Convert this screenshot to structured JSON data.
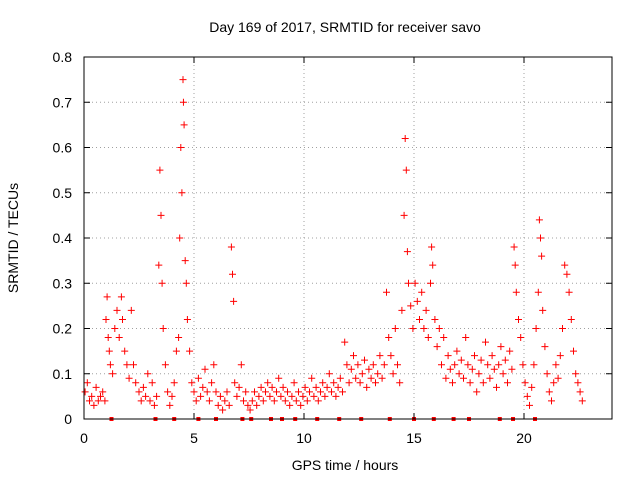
{
  "chart_data": {
    "type": "scatter",
    "title": "Day 169 of 2017, SRMTID for receiver savo",
    "xlabel": "GPS time / hours",
    "ylabel": "SRMTID / TECUs",
    "xlim": [
      0,
      24
    ],
    "ylim": [
      0,
      0.8
    ],
    "xticks": [
      0,
      5,
      10,
      15,
      20
    ],
    "xtick_labels": [
      "0",
      "5",
      "10",
      "15",
      "20"
    ],
    "yticks": [
      0,
      0.1,
      0.2,
      0.3,
      0.4,
      0.5,
      0.6,
      0.7,
      0.8
    ],
    "ytick_labels": [
      "0",
      "0.1",
      "0.2",
      "0.3",
      "0.4",
      "0.5",
      "0.6",
      "0.7",
      "0.8"
    ],
    "grid": true,
    "marker": "+",
    "color": "#ff0000",
    "series": [
      {
        "name": "SRMTID",
        "points": [
          [
            0.05,
            0.06
          ],
          [
            0.15,
            0.08
          ],
          [
            0.25,
            0.04
          ],
          [
            0.35,
            0.05
          ],
          [
            0.45,
            0.03
          ],
          [
            0.55,
            0.07
          ],
          [
            0.65,
            0.04
          ],
          [
            0.75,
            0.05
          ],
          [
            0.85,
            0.06
          ],
          [
            0.95,
            0.04
          ],
          [
            1.0,
            0.22
          ],
          [
            1.05,
            0.27
          ],
          [
            1.1,
            0.18
          ],
          [
            1.15,
            0.15
          ],
          [
            1.2,
            0.12
          ],
          [
            1.3,
            0.1
          ],
          [
            1.4,
            0.2
          ],
          [
            1.5,
            0.24
          ],
          [
            1.6,
            0.18
          ],
          [
            1.7,
            0.27
          ],
          [
            1.75,
            0.22
          ],
          [
            1.85,
            0.15
          ],
          [
            1.95,
            0.12
          ],
          [
            2.05,
            0.09
          ],
          [
            2.15,
            0.24
          ],
          [
            2.25,
            0.12
          ],
          [
            2.35,
            0.08
          ],
          [
            2.5,
            0.06
          ],
          [
            2.6,
            0.04
          ],
          [
            2.7,
            0.07
          ],
          [
            2.8,
            0.05
          ],
          [
            2.9,
            0.1
          ],
          [
            3.0,
            0.04
          ],
          [
            3.1,
            0.08
          ],
          [
            3.2,
            0.03
          ],
          [
            3.3,
            0.05
          ],
          [
            3.4,
            0.34
          ],
          [
            3.45,
            0.55
          ],
          [
            3.5,
            0.45
          ],
          [
            3.55,
            0.3
          ],
          [
            3.6,
            0.2
          ],
          [
            3.7,
            0.12
          ],
          [
            3.8,
            0.06
          ],
          [
            3.9,
            0.03
          ],
          [
            4.0,
            0.05
          ],
          [
            4.1,
            0.08
          ],
          [
            4.2,
            0.15
          ],
          [
            4.3,
            0.18
          ],
          [
            4.35,
            0.4
          ],
          [
            4.4,
            0.6
          ],
          [
            4.45,
            0.5
          ],
          [
            4.5,
            0.75
          ],
          [
            4.52,
            0.7
          ],
          [
            4.55,
            0.65
          ],
          [
            4.6,
            0.35
          ],
          [
            4.65,
            0.3
          ],
          [
            4.7,
            0.22
          ],
          [
            4.8,
            0.15
          ],
          [
            4.9,
            0.08
          ],
          [
            5.0,
            0.06
          ],
          [
            5.1,
            0.04
          ],
          [
            5.2,
            0.09
          ],
          [
            5.3,
            0.05
          ],
          [
            5.4,
            0.07
          ],
          [
            5.5,
            0.11
          ],
          [
            5.6,
            0.06
          ],
          [
            5.7,
            0.04
          ],
          [
            5.8,
            0.08
          ],
          [
            5.9,
            0.12
          ],
          [
            6.0,
            0.06
          ],
          [
            6.1,
            0.03
          ],
          [
            6.2,
            0.05
          ],
          [
            6.3,
            0.02
          ],
          [
            6.4,
            0.04
          ],
          [
            6.5,
            0.06
          ],
          [
            6.6,
            0.03
          ],
          [
            6.7,
            0.38
          ],
          [
            6.75,
            0.32
          ],
          [
            6.8,
            0.26
          ],
          [
            6.85,
            0.08
          ],
          [
            6.95,
            0.05
          ],
          [
            7.05,
            0.07
          ],
          [
            7.15,
            0.12
          ],
          [
            7.25,
            0.04
          ],
          [
            7.35,
            0.06
          ],
          [
            7.45,
            0.03
          ],
          [
            7.55,
            0.02
          ],
          [
            7.65,
            0.04
          ],
          [
            7.75,
            0.06
          ],
          [
            7.85,
            0.03
          ],
          [
            7.95,
            0.05
          ],
          [
            8.05,
            0.07
          ],
          [
            8.15,
            0.04
          ],
          [
            8.25,
            0.06
          ],
          [
            8.35,
            0.08
          ],
          [
            8.45,
            0.05
          ],
          [
            8.55,
            0.07
          ],
          [
            8.65,
            0.04
          ],
          [
            8.75,
            0.06
          ],
          [
            8.85,
            0.09
          ],
          [
            8.95,
            0.05
          ],
          [
            9.05,
            0.07
          ],
          [
            9.15,
            0.04
          ],
          [
            9.25,
            0.06
          ],
          [
            9.35,
            0.03
          ],
          [
            9.45,
            0.05
          ],
          [
            9.55,
            0.08
          ],
          [
            9.65,
            0.04
          ],
          [
            9.75,
            0.06
          ],
          [
            9.85,
            0.03
          ],
          [
            9.95,
            0.05
          ],
          [
            10.05,
            0.07
          ],
          [
            10.15,
            0.04
          ],
          [
            10.25,
            0.06
          ],
          [
            10.35,
            0.09
          ],
          [
            10.45,
            0.05
          ],
          [
            10.55,
            0.07
          ],
          [
            10.65,
            0.04
          ],
          [
            10.75,
            0.06
          ],
          [
            10.85,
            0.08
          ],
          [
            10.95,
            0.05
          ],
          [
            11.05,
            0.07
          ],
          [
            11.15,
            0.1
          ],
          [
            11.25,
            0.06
          ],
          [
            11.35,
            0.08
          ],
          [
            11.45,
            0.05
          ],
          [
            11.55,
            0.07
          ],
          [
            11.65,
            0.09
          ],
          [
            11.75,
            0.06
          ],
          [
            11.85,
            0.17
          ],
          [
            11.95,
            0.12
          ],
          [
            12.05,
            0.08
          ],
          [
            12.15,
            0.11
          ],
          [
            12.25,
            0.14
          ],
          [
            12.35,
            0.09
          ],
          [
            12.45,
            0.12
          ],
          [
            12.55,
            0.08
          ],
          [
            12.65,
            0.1
          ],
          [
            12.75,
            0.13
          ],
          [
            12.85,
            0.07
          ],
          [
            12.95,
            0.11
          ],
          [
            13.05,
            0.09
          ],
          [
            13.15,
            0.12
          ],
          [
            13.25,
            0.08
          ],
          [
            13.35,
            0.1
          ],
          [
            13.45,
            0.14
          ],
          [
            13.55,
            0.09
          ],
          [
            13.65,
            0.12
          ],
          [
            13.75,
            0.28
          ],
          [
            13.85,
            0.18
          ],
          [
            13.95,
            0.14
          ],
          [
            14.05,
            0.1
          ],
          [
            14.15,
            0.2
          ],
          [
            14.25,
            0.12
          ],
          [
            14.35,
            0.08
          ],
          [
            14.45,
            0.24
          ],
          [
            14.55,
            0.45
          ],
          [
            14.6,
            0.62
          ],
          [
            14.65,
            0.55
          ],
          [
            14.7,
            0.37
          ],
          [
            14.75,
            0.3
          ],
          [
            14.85,
            0.25
          ],
          [
            14.95,
            0.2
          ],
          [
            15.05,
            0.3
          ],
          [
            15.15,
            0.26
          ],
          [
            15.25,
            0.22
          ],
          [
            15.35,
            0.28
          ],
          [
            15.45,
            0.2
          ],
          [
            15.55,
            0.24
          ],
          [
            15.65,
            0.18
          ],
          [
            15.75,
            0.3
          ],
          [
            15.8,
            0.38
          ],
          [
            15.85,
            0.34
          ],
          [
            15.95,
            0.22
          ],
          [
            16.05,
            0.16
          ],
          [
            16.15,
            0.2
          ],
          [
            16.25,
            0.12
          ],
          [
            16.35,
            0.18
          ],
          [
            16.45,
            0.09
          ],
          [
            16.55,
            0.14
          ],
          [
            16.65,
            0.11
          ],
          [
            16.75,
            0.08
          ],
          [
            16.85,
            0.12
          ],
          [
            16.95,
            0.15
          ],
          [
            17.05,
            0.1
          ],
          [
            17.15,
            0.13
          ],
          [
            17.25,
            0.09
          ],
          [
            17.35,
            0.18
          ],
          [
            17.45,
            0.12
          ],
          [
            17.55,
            0.08
          ],
          [
            17.65,
            0.11
          ],
          [
            17.75,
            0.14
          ],
          [
            17.85,
            0.06
          ],
          [
            17.95,
            0.1
          ],
          [
            18.05,
            0.13
          ],
          [
            18.15,
            0.08
          ],
          [
            18.25,
            0.17
          ],
          [
            18.35,
            0.12
          ],
          [
            18.45,
            0.09
          ],
          [
            18.55,
            0.14
          ],
          [
            18.65,
            0.11
          ],
          [
            18.75,
            0.07
          ],
          [
            18.85,
            0.12
          ],
          [
            18.95,
            0.16
          ],
          [
            19.05,
            0.1
          ],
          [
            19.15,
            0.13
          ],
          [
            19.25,
            0.08
          ],
          [
            19.35,
            0.15
          ],
          [
            19.45,
            0.11
          ],
          [
            19.55,
            0.38
          ],
          [
            19.6,
            0.34
          ],
          [
            19.65,
            0.28
          ],
          [
            19.75,
            0.22
          ],
          [
            19.85,
            0.18
          ],
          [
            19.95,
            0.12
          ],
          [
            20.05,
            0.08
          ],
          [
            20.15,
            0.05
          ],
          [
            20.25,
            0.03
          ],
          [
            20.35,
            0.07
          ],
          [
            20.45,
            0.12
          ],
          [
            20.55,
            0.2
          ],
          [
            20.65,
            0.28
          ],
          [
            20.7,
            0.44
          ],
          [
            20.75,
            0.4
          ],
          [
            20.8,
            0.36
          ],
          [
            20.85,
            0.24
          ],
          [
            20.95,
            0.16
          ],
          [
            21.05,
            0.1
          ],
          [
            21.15,
            0.06
          ],
          [
            21.25,
            0.04
          ],
          [
            21.35,
            0.08
          ],
          [
            21.45,
            0.12
          ],
          [
            21.55,
            0.09
          ],
          [
            21.65,
            0.14
          ],
          [
            21.75,
            0.2
          ],
          [
            21.85,
            0.34
          ],
          [
            21.95,
            0.32
          ],
          [
            22.05,
            0.28
          ],
          [
            22.15,
            0.22
          ],
          [
            22.25,
            0.15
          ],
          [
            22.35,
            0.1
          ],
          [
            22.45,
            0.08
          ],
          [
            22.55,
            0.06
          ],
          [
            22.65,
            0.04
          ]
        ]
      }
    ],
    "baseline_markers_x": [
      1.25,
      3.25,
      4.1,
      5.2,
      6.0,
      7.2,
      7.6,
      8.5,
      9.0,
      9.6,
      10.6,
      11.6,
      12.6,
      13.9,
      15.0,
      15.9,
      16.8,
      17.5,
      18.9,
      19.5,
      20.5
    ]
  }
}
